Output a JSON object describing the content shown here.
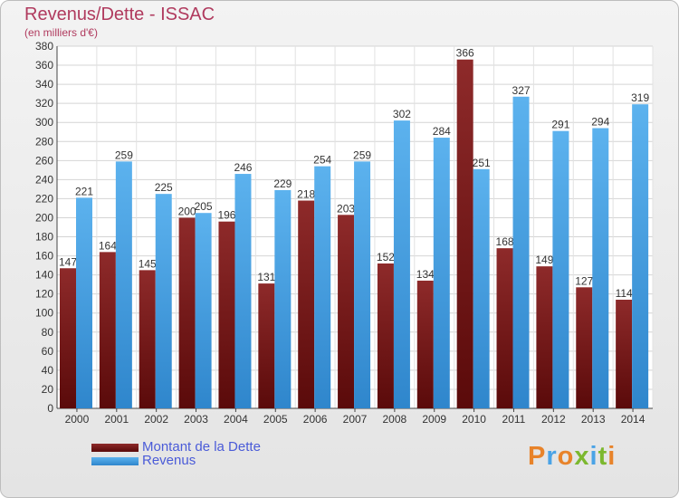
{
  "title": "Revenus/Dette - ISSAC",
  "subtitle": "(en milliers d'€)",
  "legend": {
    "items": [
      {
        "label": "Montant de la Dette",
        "color": "#7b1d1d"
      },
      {
        "label": "Revenus",
        "color": "#4aa3e6"
      }
    ]
  },
  "logo": {
    "text": "Proxiti"
  },
  "colors": {
    "debt": "#7b1d1d",
    "revenue": "#4aa3e6",
    "title": "#b03a5e",
    "legend_text": "#4a5bd8"
  },
  "chart_data": {
    "type": "bar",
    "categories": [
      "2000",
      "2001",
      "2002",
      "2003",
      "2004",
      "2005",
      "2006",
      "2007",
      "2008",
      "2009",
      "2010",
      "2011",
      "2012",
      "2013",
      "2014"
    ],
    "series": [
      {
        "name": "Montant de la Dette",
        "values": [
          147,
          164,
          145,
          200,
          196,
          131,
          218,
          203,
          152,
          134,
          366,
          168,
          149,
          127,
          114
        ]
      },
      {
        "name": "Revenus",
        "values": [
          221,
          259,
          225,
          205,
          246,
          229,
          254,
          259,
          302,
          284,
          251,
          327,
          291,
          294,
          319
        ]
      }
    ],
    "ylim": [
      0,
      380
    ],
    "ytick_step": 20,
    "grid": true,
    "legend_position": "bottom-left"
  }
}
